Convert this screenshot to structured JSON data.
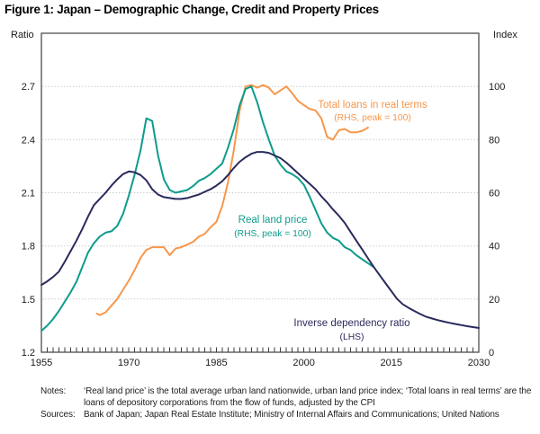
{
  "title": "Figure 1: Japan – Demographic Change, Credit and Property Prices",
  "notes": {
    "label": "Notes:",
    "text": "‘Real land price’ is the total average urban land nationwide, urban land price index; ‘Total loans in real terms’ are the loans of depository corporations from the flow of funds, adjusted by the CPI"
  },
  "sources": {
    "label": "Sources:",
    "text": "Bank of Japan; Japan Real Estate Institute; Ministry of Internal Affairs and Communications; United Nations"
  },
  "chart_data": {
    "type": "line",
    "title": "Figure 1: Japan – Demographic Change, Credit and Property Prices",
    "grid": "dotted horizontal gridlines at labeled left-axis values 1.5 to 2.7; minor x ticks every year",
    "x_axis": {
      "range": [
        1955,
        2030
      ],
      "labeled_ticks": [
        1955,
        1970,
        1985,
        2000,
        2015,
        2030
      ],
      "minor_tick_interval": 1
    },
    "left_axis": {
      "label": "Ratio",
      "range": [
        1.2,
        3.0
      ],
      "ticks": [
        1.2,
        1.5,
        1.8,
        2.1,
        2.4,
        2.7
      ]
    },
    "right_axis": {
      "label": "Index",
      "range": [
        0,
        120
      ],
      "ticks": [
        0,
        20,
        40,
        60,
        80,
        100
      ]
    },
    "colors": {
      "loans": "#F7974B",
      "land": "#0D9C8C",
      "dependency": "#2A2A5E",
      "gridline": "#c6c6c6",
      "axis": "#3f3f3f"
    },
    "legend": {
      "loans": {
        "line1": "Total loans in real terms",
        "line2": "(RHS, peak = 100)"
      },
      "land": {
        "line1": "Real land price",
        "line2": "(RHS, peak = 100)"
      },
      "dependency": {
        "line1": "Inverse dependency ratio",
        "line2": "(LHS)"
      }
    },
    "series": [
      {
        "name": "Total loans in real terms",
        "slug": "total-loans",
        "axis": "right",
        "color": "#F7974B",
        "points": [
          [
            1964.5,
            14.5
          ],
          [
            1965,
            14
          ],
          [
            1966,
            15
          ],
          [
            1967,
            17.5
          ],
          [
            1968,
            20
          ],
          [
            1969,
            23.5
          ],
          [
            1970,
            27
          ],
          [
            1971,
            31
          ],
          [
            1972,
            35.5
          ],
          [
            1973,
            38.5
          ],
          [
            1974,
            39.5
          ],
          [
            1975,
            39.5
          ],
          [
            1976,
            39.5
          ],
          [
            1977,
            36.5
          ],
          [
            1978,
            39
          ],
          [
            1979,
            39.5
          ],
          [
            1980,
            40.5
          ],
          [
            1981,
            41.5
          ],
          [
            1982,
            43.5
          ],
          [
            1983,
            44.5
          ],
          [
            1984,
            47
          ],
          [
            1985,
            49
          ],
          [
            1986,
            55
          ],
          [
            1987,
            64
          ],
          [
            1988,
            76
          ],
          [
            1989,
            91
          ],
          [
            1990,
            100
          ],
          [
            1991,
            100.5
          ],
          [
            1992,
            99.5
          ],
          [
            1993,
            100.5
          ],
          [
            1994,
            99.5
          ],
          [
            1995,
            97
          ],
          [
            1996,
            98.5
          ],
          [
            1997,
            100
          ],
          [
            1998,
            97.5
          ],
          [
            1999,
            94.5
          ],
          [
            2000,
            93
          ],
          [
            2001,
            91.5
          ],
          [
            2002,
            91
          ],
          [
            2003,
            88
          ],
          [
            2004,
            81
          ],
          [
            2005,
            80
          ],
          [
            2006,
            83.5
          ],
          [
            2007,
            84
          ],
          [
            2008,
            82.7
          ],
          [
            2009,
            82.7
          ],
          [
            2010,
            83.3
          ],
          [
            2011,
            84.5
          ]
        ]
      },
      {
        "name": "Real land price",
        "slug": "real-land-price",
        "axis": "right",
        "color": "#0D9C8C",
        "points": [
          [
            1955,
            8
          ],
          [
            1956,
            10
          ],
          [
            1957,
            12.5
          ],
          [
            1958,
            15.5
          ],
          [
            1959,
            19
          ],
          [
            1960,
            22.5
          ],
          [
            1961,
            26.5
          ],
          [
            1962,
            32
          ],
          [
            1963,
            37.5
          ],
          [
            1964,
            41
          ],
          [
            1965,
            43.5
          ],
          [
            1966,
            45
          ],
          [
            1967,
            45.5
          ],
          [
            1968,
            47.5
          ],
          [
            1969,
            52
          ],
          [
            1970,
            59
          ],
          [
            1971,
            67
          ],
          [
            1972,
            76
          ],
          [
            1973,
            88
          ],
          [
            1974,
            87
          ],
          [
            1975,
            74
          ],
          [
            1976,
            65
          ],
          [
            1977,
            61
          ],
          [
            1978,
            60
          ],
          [
            1979,
            60.5
          ],
          [
            1980,
            61
          ],
          [
            1981,
            62.5
          ],
          [
            1982,
            64.5
          ],
          [
            1983,
            65.5
          ],
          [
            1984,
            67
          ],
          [
            1985,
            69
          ],
          [
            1986,
            71
          ],
          [
            1987,
            77
          ],
          [
            1988,
            84
          ],
          [
            1989,
            93
          ],
          [
            1990,
            99
          ],
          [
            1991,
            100
          ],
          [
            1992,
            94
          ],
          [
            1993,
            86.5
          ],
          [
            1994,
            80
          ],
          [
            1995,
            74
          ],
          [
            1996,
            70.5
          ],
          [
            1997,
            68
          ],
          [
            1998,
            67
          ],
          [
            1999,
            65.5
          ],
          [
            2000,
            63
          ],
          [
            2001,
            58.5
          ],
          [
            2002,
            53.5
          ],
          [
            2003,
            48.5
          ],
          [
            2004,
            45
          ],
          [
            2005,
            43
          ],
          [
            2006,
            42
          ],
          [
            2007,
            39.5
          ],
          [
            2008,
            38.5
          ],
          [
            2009,
            36.5
          ],
          [
            2010,
            35
          ],
          [
            2011,
            33.5
          ],
          [
            2012,
            32
          ]
        ]
      },
      {
        "name": "Inverse dependency ratio",
        "slug": "inverse-dependency-ratio",
        "axis": "left",
        "color": "#2A2A5E",
        "points": [
          [
            1955,
            1.58
          ],
          [
            1956,
            1.6
          ],
          [
            1957,
            1.625
          ],
          [
            1958,
            1.655
          ],
          [
            1959,
            1.71
          ],
          [
            1960,
            1.77
          ],
          [
            1961,
            1.83
          ],
          [
            1962,
            1.895
          ],
          [
            1963,
            1.965
          ],
          [
            1964,
            2.03
          ],
          [
            1965,
            2.065
          ],
          [
            1966,
            2.1
          ],
          [
            1967,
            2.14
          ],
          [
            1968,
            2.175
          ],
          [
            1969,
            2.205
          ],
          [
            1970,
            2.22
          ],
          [
            1971,
            2.215
          ],
          [
            1972,
            2.2
          ],
          [
            1973,
            2.17
          ],
          [
            1974,
            2.12
          ],
          [
            1975,
            2.09
          ],
          [
            1976,
            2.075
          ],
          [
            1977,
            2.07
          ],
          [
            1978,
            2.065
          ],
          [
            1979,
            2.065
          ],
          [
            1980,
            2.07
          ],
          [
            1981,
            2.08
          ],
          [
            1982,
            2.09
          ],
          [
            1983,
            2.105
          ],
          [
            1984,
            2.12
          ],
          [
            1985,
            2.14
          ],
          [
            1986,
            2.165
          ],
          [
            1987,
            2.2
          ],
          [
            1988,
            2.24
          ],
          [
            1989,
            2.275
          ],
          [
            1990,
            2.3
          ],
          [
            1991,
            2.32
          ],
          [
            1992,
            2.33
          ],
          [
            1993,
            2.33
          ],
          [
            1994,
            2.325
          ],
          [
            1995,
            2.31
          ],
          [
            1996,
            2.295
          ],
          [
            1997,
            2.27
          ],
          [
            1998,
            2.24
          ],
          [
            1999,
            2.21
          ],
          [
            2000,
            2.18
          ],
          [
            2001,
            2.15
          ],
          [
            2002,
            2.12
          ],
          [
            2003,
            2.08
          ],
          [
            2004,
            2.045
          ],
          [
            2005,
            2.005
          ],
          [
            2006,
            1.97
          ],
          [
            2007,
            1.93
          ],
          [
            2008,
            1.88
          ],
          [
            2009,
            1.83
          ],
          [
            2010,
            1.78
          ],
          [
            2011,
            1.73
          ],
          [
            2012,
            1.68
          ],
          [
            2013,
            1.635
          ],
          [
            2014,
            1.59
          ],
          [
            2015,
            1.545
          ],
          [
            2016,
            1.5
          ],
          [
            2017,
            1.47
          ],
          [
            2018,
            1.45
          ],
          [
            2019,
            1.432
          ],
          [
            2020,
            1.415
          ],
          [
            2021,
            1.4
          ],
          [
            2022,
            1.39
          ],
          [
            2023,
            1.381
          ],
          [
            2024,
            1.373
          ],
          [
            2025,
            1.366
          ],
          [
            2026,
            1.359
          ],
          [
            2027,
            1.353
          ],
          [
            2028,
            1.347
          ],
          [
            2029,
            1.342
          ],
          [
            2030,
            1.337
          ]
        ]
      }
    ]
  }
}
